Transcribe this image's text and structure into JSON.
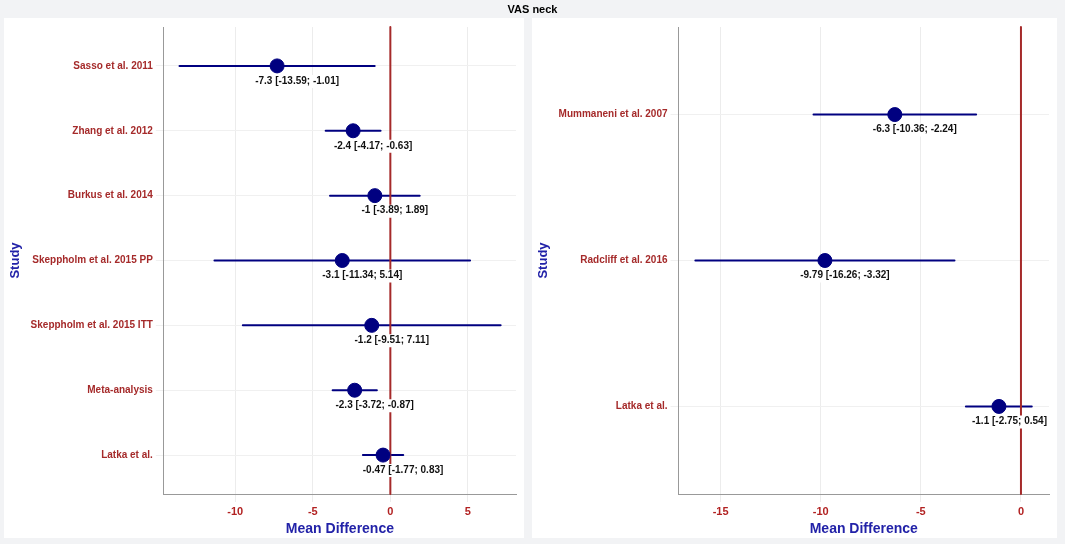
{
  "chart_data": [
    {
      "type": "scatter",
      "orientation": "horizontal",
      "title": "VAS neck",
      "xlabel": "Mean Difference",
      "ylabel": "Study",
      "categories": [
        "Sasso et al. 2011",
        "Zhang et al. 2012",
        "Burkus et al. 2014",
        "Skeppholm et al. 2015 PP",
        "Skeppholm et al. 2015 ITT",
        "Meta-analysis",
        "Latka et al."
      ],
      "values": [
        -7.3,
        -2.4,
        -1,
        -3.1,
        -1.2,
        -2.3,
        -0.47
      ],
      "errors": [
        [
          -13.59,
          -1.01
        ],
        [
          -4.17,
          -0.63
        ],
        [
          -3.89,
          1.89
        ],
        [
          -11.34,
          5.14
        ],
        [
          -9.51,
          7.11
        ],
        [
          -3.72,
          -0.87
        ],
        [
          -1.77,
          0.83
        ]
      ],
      "value_labels": [
        "-7.3 [-13.59; -1.01]",
        "-2.4 [-4.17; -0.63]",
        "-1 [-3.89; 1.89]",
        "-3.1 [-11.34; 5.14]",
        "-1.2 [-9.51; 7.11]",
        "-2.3 [-3.72; -0.87]",
        "-0.47 [-1.77; 0.83]"
      ],
      "color": "#000080",
      "marker": "circle",
      "xlim": [
        -14.6,
        8.1
      ],
      "xticks": [
        -10,
        -5,
        0,
        5
      ],
      "grid": true,
      "ref_lines": [
        {
          "axis": "x",
          "value": 0,
          "color": "#a52a2a"
        }
      ]
    },
    {
      "type": "scatter",
      "orientation": "horizontal",
      "xlabel": "Mean Difference",
      "ylabel": "Study",
      "categories": [
        "Mummaneni et al. 2007",
        "Radcliff et al. 2016",
        "Latka et al."
      ],
      "values": [
        -6.3,
        -9.79,
        -1.1
      ],
      "errors": [
        [
          -10.36,
          -2.24
        ],
        [
          -16.26,
          -3.32
        ],
        [
          -2.75,
          0.54
        ]
      ],
      "value_labels": [
        "-6.3 [-10.36; -2.24]",
        "-9.79 [-16.26; -3.32]",
        "-1.1 [-2.75; 0.54]"
      ],
      "color": "#000080",
      "marker": "circle",
      "xlim": [
        -17.1,
        1.4
      ],
      "xticks": [
        -15,
        -10,
        -5,
        0
      ],
      "grid": true,
      "ref_lines": [
        {
          "axis": "x",
          "value": 0,
          "color": "#a52a2a"
        }
      ]
    }
  ]
}
